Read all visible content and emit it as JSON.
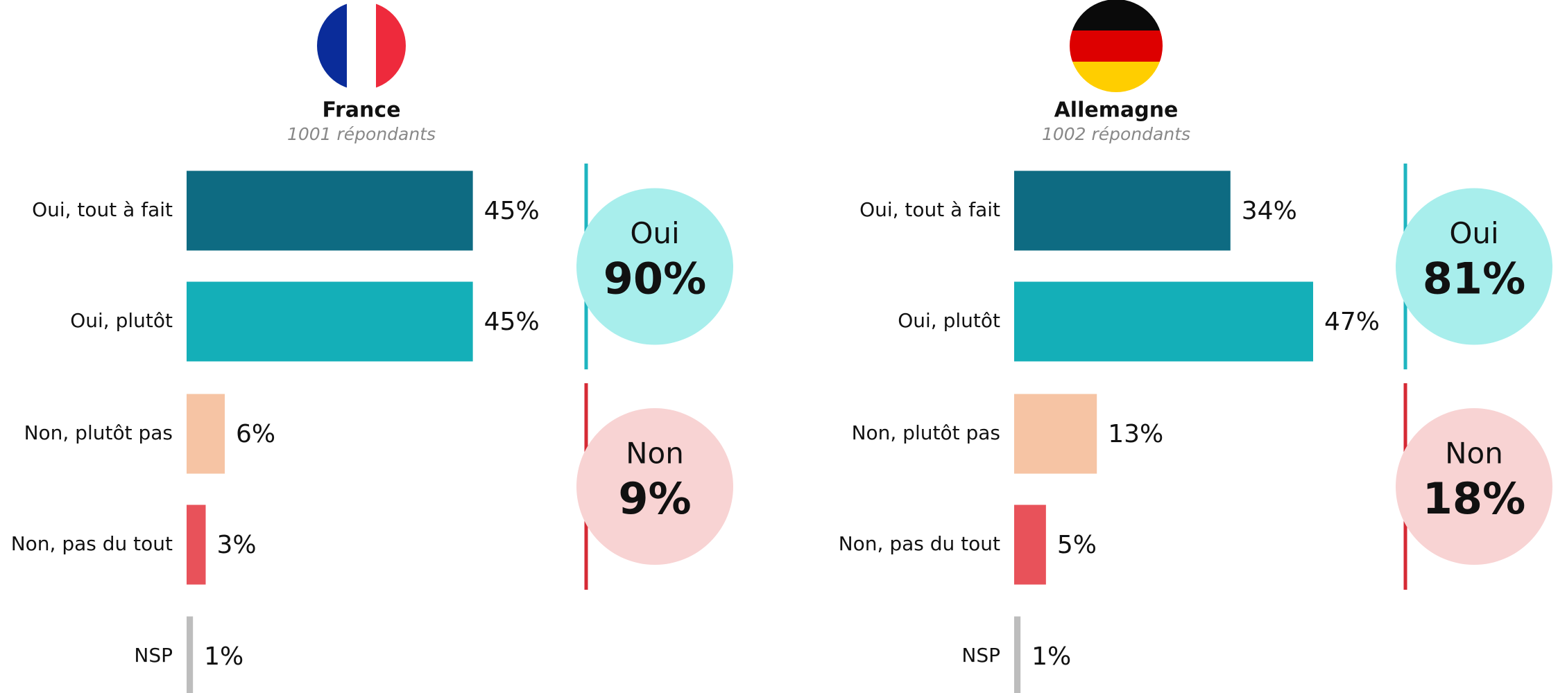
{
  "chart_data": [
    {
      "type": "bar",
      "orientation": "horizontal",
      "title": "France",
      "subtitle": "1001 répondants",
      "categories": [
        "Oui, tout à fait",
        "Oui, plutôt",
        "Non, plutôt pas",
        "Non, pas du tout",
        "NSP"
      ],
      "values": [
        45,
        45,
        6,
        3,
        1
      ],
      "value_labels": [
        "45%",
        "45%",
        "6%",
        "3%",
        "1%"
      ],
      "colors": [
        "#0e6b82",
        "#14afb8",
        "#f6c4a4",
        "#e8525a",
        "#bdbdbd"
      ],
      "summary": [
        {
          "label": "Oui",
          "value": 90,
          "value_label": "90%",
          "color": "#a8eeec",
          "line_color": "#1fb5c0"
        },
        {
          "label": "Non",
          "value": 9,
          "value_label": "9%",
          "color": "#f8d3d3",
          "line_color": "#d62a35"
        }
      ]
    },
    {
      "type": "bar",
      "orientation": "horizontal",
      "title": "Allemagne",
      "subtitle": "1002 répondants",
      "categories": [
        "Oui, tout à fait",
        "Oui, plutôt",
        "Non, plutôt pas",
        "Non, pas du tout",
        "NSP"
      ],
      "values": [
        34,
        47,
        13,
        5,
        1
      ],
      "value_labels": [
        "34%",
        "47%",
        "13%",
        "5%",
        "1%"
      ],
      "colors": [
        "#0e6b82",
        "#14afb8",
        "#f6c4a4",
        "#e8525a",
        "#bdbdbd"
      ],
      "summary": [
        {
          "label": "Oui",
          "value": 81,
          "value_label": "81%",
          "color": "#a8eeec",
          "line_color": "#1fb5c0"
        },
        {
          "label": "Non",
          "value": 18,
          "value_label": "18%",
          "color": "#f8d3d3",
          "line_color": "#d62a35"
        }
      ]
    }
  ]
}
